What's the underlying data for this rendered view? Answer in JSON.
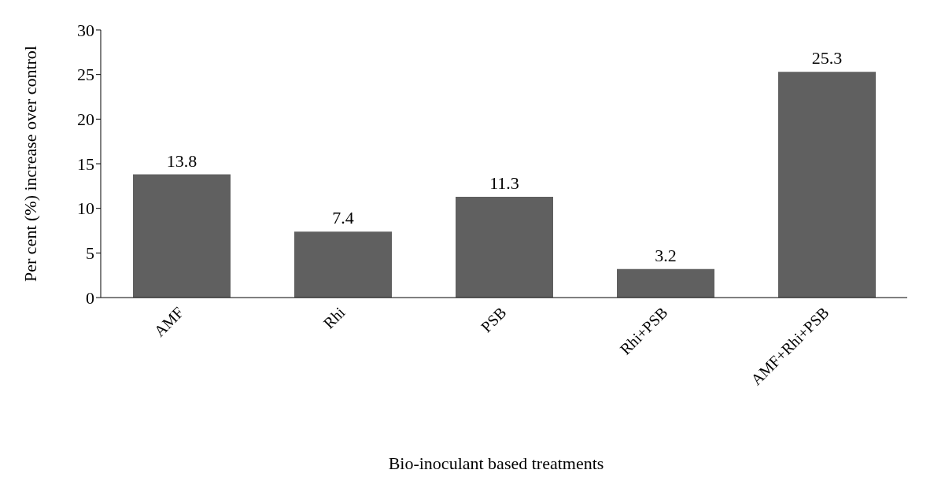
{
  "chart_data": {
    "type": "bar",
    "xlabel": "Bio-inoculant based treatments",
    "ylabel": "Per cent (%) increase over control",
    "categories": [
      "AMF",
      "Rhi",
      "PSB",
      "Rhi+PSB",
      "AMF+Rhi+PSB"
    ],
    "values": [
      13.8,
      7.4,
      11.3,
      3.2,
      25.3
    ],
    "color": "#606060",
    "ylim": [
      0,
      30
    ],
    "yticks": [
      0,
      5,
      10,
      15,
      20,
      25,
      30
    ],
    "grid": false,
    "data_labels": true
  }
}
